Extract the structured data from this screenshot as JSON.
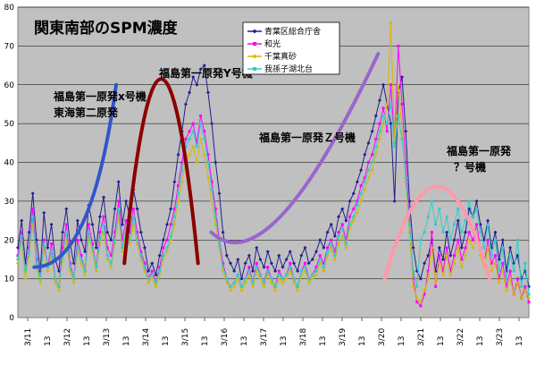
{
  "chart_data": {
    "type": "line",
    "title": "関東南部のSPM濃度",
    "xlabel": "",
    "ylabel": "",
    "ylim": [
      0,
      80
    ],
    "yticks": [
      0,
      10,
      20,
      30,
      40,
      50,
      60,
      70,
      80
    ],
    "grid": true,
    "legend_position": "top-right",
    "x_tick_labels": [
      "3/11",
      "13",
      "3/12",
      "13",
      "3/13",
      "13",
      "3/14",
      "13",
      "3/15",
      "13",
      "3/16",
      "13",
      "3/17",
      "13",
      "3/18",
      "13",
      "3/19",
      "13",
      "3/20",
      "13",
      "3/21",
      "13",
      "3/22",
      "13",
      "3/23",
      "13"
    ],
    "x_range": [
      0,
      312
    ],
    "series": [
      {
        "name": "青葉区総合庁舎",
        "color": "#1f1f8f",
        "marker": "diamond",
        "values": [
          18,
          25,
          14,
          22,
          32,
          20,
          12,
          27,
          18,
          24,
          15,
          12,
          22,
          28,
          19,
          14,
          25,
          20,
          17,
          29,
          24,
          18,
          26,
          31,
          22,
          20,
          28,
          35,
          24,
          30,
          26,
          33,
          28,
          22,
          18,
          12,
          14,
          11,
          16,
          20,
          24,
          28,
          35,
          42,
          48,
          55,
          58,
          62,
          60,
          64,
          65,
          58,
          50,
          40,
          32,
          22,
          16,
          14,
          12,
          15,
          10,
          14,
          16,
          12,
          18,
          15,
          13,
          17,
          14,
          12,
          16,
          13,
          15,
          17,
          14,
          12,
          16,
          18,
          14,
          15,
          17,
          20,
          18,
          22,
          24,
          21,
          26,
          28,
          25,
          30,
          32,
          35,
          38,
          42,
          45,
          48,
          52,
          56,
          60,
          55,
          50,
          30,
          58,
          62,
          48,
          30,
          18,
          12,
          10,
          14,
          16,
          20,
          12,
          18,
          15,
          22,
          16,
          20,
          25,
          18,
          22,
          28,
          26,
          30,
          24,
          20,
          25,
          18,
          22,
          15,
          20,
          12,
          18,
          14,
          16,
          10,
          12,
          8
        ]
      },
      {
        "name": "和光",
        "color": "#ff00ff",
        "marker": "square",
        "values": [
          16,
          22,
          12,
          18,
          28,
          15,
          10,
          20,
          13,
          19,
          10,
          8,
          18,
          24,
          14,
          10,
          20,
          16,
          12,
          24,
          19,
          13,
          22,
          26,
          18,
          16,
          22,
          30,
          20,
          25,
          22,
          28,
          22,
          17,
          14,
          10,
          12,
          9,
          13,
          18,
          20,
          24,
          28,
          34,
          40,
          46,
          48,
          50,
          45,
          52,
          48,
          42,
          35,
          28,
          20,
          14,
          10,
          8,
          9,
          11,
          8,
          10,
          13,
          9,
          14,
          11,
          9,
          13,
          10,
          8,
          12,
          10,
          11,
          14,
          10,
          8,
          12,
          14,
          10,
          11,
          13,
          16,
          14,
          18,
          20,
          17,
          22,
          24,
          20,
          26,
          28,
          30,
          34,
          36,
          40,
          42,
          46,
          50,
          54,
          48,
          60,
          45,
          70,
          55,
          40,
          25,
          10,
          4,
          3,
          6,
          12,
          22,
          8,
          16,
          12,
          18,
          12,
          16,
          20,
          15,
          18,
          22,
          20,
          24,
          18,
          14,
          20,
          14,
          16,
          10,
          14,
          8,
          12,
          6,
          10,
          5,
          8,
          4
        ]
      },
      {
        "name": "千葉真砂",
        "color": "#d4b800",
        "marker": "diamond",
        "values": [
          14,
          20,
          10,
          16,
          24,
          13,
          9,
          18,
          12,
          16,
          9,
          7,
          15,
          20,
          12,
          9,
          17,
          14,
          11,
          21,
          17,
          12,
          19,
          22,
          15,
          13,
          19,
          26,
          17,
          22,
          19,
          24,
          19,
          15,
          12,
          9,
          10,
          8,
          11,
          15,
          17,
          20,
          24,
          30,
          35,
          40,
          42,
          44,
          40,
          46,
          42,
          36,
          30,
          24,
          18,
          12,
          9,
          7,
          8,
          10,
          7,
          9,
          11,
          8,
          12,
          10,
          8,
          11,
          9,
          7,
          10,
          9,
          10,
          12,
          9,
          7,
          11,
          12,
          9,
          10,
          11,
          14,
          12,
          16,
          18,
          15,
          19,
          21,
          18,
          23,
          25,
          27,
          30,
          33,
          36,
          38,
          42,
          46,
          50,
          55,
          76,
          45,
          60,
          48,
          35,
          22,
          8,
          5,
          4,
          7,
          10,
          18,
          9,
          14,
          11,
          16,
          11,
          14,
          18,
          13,
          16,
          20,
          18,
          21,
          16,
          13,
          18,
          12,
          14,
          9,
          12,
          7,
          10,
          6,
          9,
          5,
          7,
          5
        ]
      },
      {
        "name": "我孫子湖北台",
        "color": "#33cccc",
        "marker": "square",
        "values": [
          15,
          21,
          12,
          17,
          26,
          14,
          10,
          19,
          13,
          17,
          10,
          8,
          16,
          22,
          13,
          10,
          18,
          15,
          12,
          22,
          18,
          13,
          20,
          24,
          16,
          14,
          20,
          28,
          18,
          23,
          20,
          26,
          20,
          16,
          13,
          10,
          11,
          9,
          12,
          16,
          18,
          21,
          26,
          32,
          38,
          44,
          46,
          48,
          44,
          50,
          46,
          40,
          33,
          26,
          19,
          13,
          10,
          8,
          9,
          11,
          8,
          10,
          12,
          9,
          13,
          11,
          9,
          12,
          10,
          8,
          11,
          10,
          11,
          13,
          10,
          8,
          12,
          13,
          10,
          11,
          12,
          15,
          13,
          17,
          19,
          16,
          21,
          23,
          19,
          24,
          26,
          29,
          32,
          35,
          38,
          40,
          44,
          48,
          52,
          50,
          55,
          44,
          52,
          46,
          36,
          24,
          12,
          8,
          20,
          22,
          26,
          30,
          24,
          28,
          22,
          26,
          20,
          24,
          28,
          22,
          25,
          30,
          26,
          28,
          22,
          18,
          24,
          16,
          20,
          12,
          18,
          10,
          16,
          12,
          20,
          8,
          14,
          6
        ]
      }
    ],
    "annotations": [
      {
        "lines": [
          "福島第一原発x号機",
          "東海第二原発"
        ],
        "color": "#3355cc",
        "curve_x": [
          10,
          60
        ],
        "curve_y": [
          13,
          60
        ]
      },
      {
        "lines": [
          "福島第一原発Y号機"
        ],
        "color": "#8b0000",
        "curve_x": [
          65,
          110
        ],
        "curve_y": [
          14,
          64
        ]
      },
      {
        "lines": [
          "福島第一原発Ｚ号機"
        ],
        "color": "#9966cc",
        "curve_x": [
          118,
          220
        ],
        "curve_y": [
          15,
          68
        ]
      },
      {
        "lines": [
          "福島第一原発",
          "？号機"
        ],
        "color": "#ff99aa",
        "curve_x": [
          224,
          288
        ],
        "curve_y": [
          10,
          35
        ]
      }
    ]
  }
}
